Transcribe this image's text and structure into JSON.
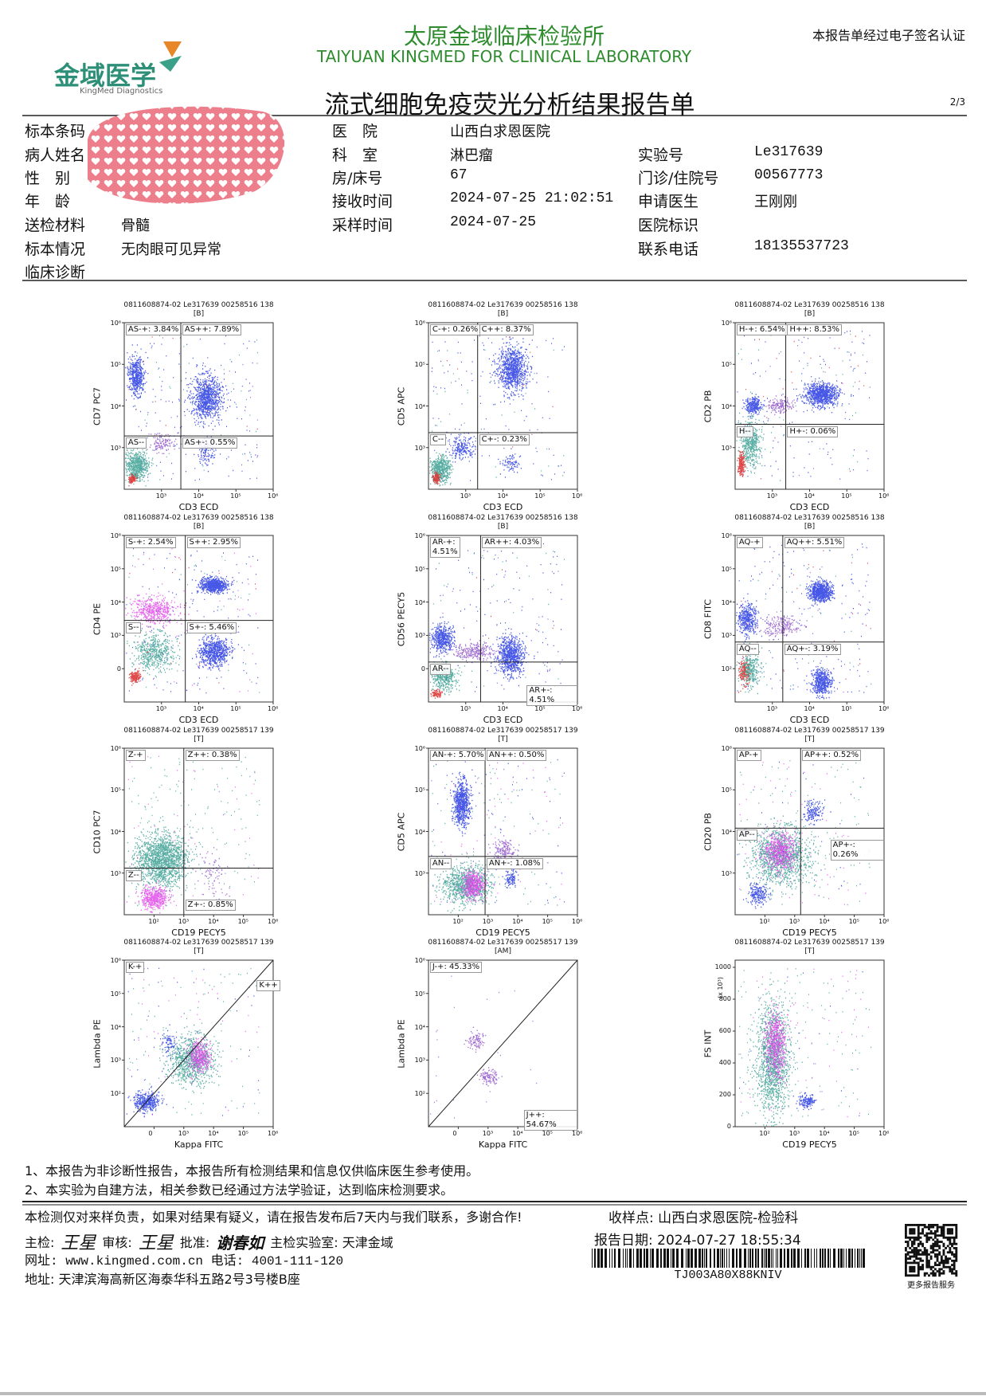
{
  "header": {
    "logo": "金域医学",
    "logo_sub": "KingMed Diagnostics",
    "title_cn": "太原金域临床检验所",
    "title_en": "TAIYUAN KINGMED FOR CLINICAL LABORATORY",
    "certification": "本报告单经过电子签名认证",
    "report_title": "流式细胞免疫荧光分析结果报告单",
    "page": "2/3"
  },
  "info": {
    "col1": [
      {
        "label": "标本条码"
      },
      {
        "label": "病人姓名"
      },
      {
        "label": "性　别"
      },
      {
        "label": "年　龄"
      },
      {
        "label": "送检材料",
        "value": "骨髓"
      },
      {
        "label": "标本情况",
        "value": "无肉眼可见异常"
      },
      {
        "label": "临床诊断"
      }
    ],
    "col2": [
      {
        "label": "医　院",
        "value": "山西白求恩医院"
      },
      {
        "label": "科　室",
        "value": "淋巴瘤"
      },
      {
        "label": "房/床号",
        "value": "67"
      },
      {
        "label": "接收时间",
        "value": "2024-07-25 21:02:51"
      },
      {
        "label": "采样时间",
        "value": "2024-07-25"
      }
    ],
    "col3": [
      {
        "label": "实验号",
        "value": "Le317639"
      },
      {
        "label": "门诊/住院号",
        "value": "00567773"
      },
      {
        "label": "申请医生",
        "value": "王刚刚"
      },
      {
        "label": "医院标识"
      },
      {
        "label": "联系电话",
        "value": "18135537723"
      }
    ]
  },
  "plots": [
    {
      "header": "0811608874-02 Le317639 00258516 138",
      "tube": "[B]",
      "x_label": "CD3 ECD",
      "y_label": "CD7 PC7",
      "xticks": [
        "10³",
        "10⁴",
        "10⁵",
        "10⁶"
      ],
      "yticks": [
        "10⁶",
        "10⁵",
        "10⁴",
        "10³"
      ],
      "gates": [
        "AS-+: 3.84%",
        "AS++: 7.89%",
        "AS--",
        "AS+-: 0.55%"
      ]
    },
    {
      "header": "0811608874-02 Le317639 00258516 138",
      "tube": "[B]",
      "x_label": "CD3 ECD",
      "y_label": "CD5 APC",
      "xticks": [
        "10³",
        "10⁴",
        "10⁵",
        "10⁶"
      ],
      "yticks": [
        "10⁶",
        "10⁵",
        "10⁴",
        "10³"
      ],
      "gates": [
        "C-+: 0.26%",
        "C++: 8.37%",
        "C--",
        "C+-: 0.23%"
      ]
    },
    {
      "header": "0811608874-02 Le317639 00258516 138",
      "tube": "[B]",
      "x_label": "CD3 ECD",
      "y_label": "CD2 PB",
      "xticks": [
        "10³",
        "10⁴",
        "10⁵",
        "10⁶"
      ],
      "yticks": [
        "10⁶",
        "10⁵",
        "10⁴",
        "10³"
      ],
      "gates": [
        "H-+: 6.54%",
        "H++: 8.53%",
        "H--",
        "H+-: 0.06%"
      ]
    },
    {
      "header": "0811608874-02 Le317639 00258516 138",
      "tube": "[B]",
      "x_label": "CD3 ECD",
      "y_label": "CD4 PE",
      "xticks": [
        "10³",
        "10⁴",
        "10⁵",
        "10⁶"
      ],
      "yticks": [
        "10⁶",
        "10⁵",
        "10⁴",
        "10³",
        "0"
      ],
      "gates": [
        "S-+: 2.54%",
        "S++: 2.95%",
        "S--",
        "S+-: 5.46%"
      ]
    },
    {
      "header": "0811608874-02 Le317639 00258516 138",
      "tube": "[B]",
      "x_label": "CD3 ECD",
      "y_label": "CD56 PECY5",
      "xticks": [
        "10³",
        "10⁴",
        "10⁵",
        "10⁶"
      ],
      "yticks": [
        "10⁶",
        "10⁵",
        "10⁴",
        "10³",
        "0"
      ],
      "gates": [
        "AR-+:\n4.51%",
        "AR++: 4.03%",
        "AR--",
        "AR+-: 4.51%"
      ]
    },
    {
      "header": "0811608874-02 Le317639 00258516 138",
      "tube": "[B]",
      "x_label": "CD3 ECD",
      "y_label": "CD8 FITC",
      "xticks": [
        "10³",
        "10⁴",
        "10⁵",
        "10⁶"
      ],
      "yticks": [
        "10⁶",
        "10⁵",
        "10⁴",
        "10³",
        "10²"
      ],
      "gates": [
        "AQ-+",
        "AQ++: 5.51%",
        "AQ--",
        "AQ+-: 3.19%"
      ]
    },
    {
      "header": "0811608874-02 Le317639 00258517 139",
      "tube": "[T]",
      "x_label": "CD19 PECY5",
      "y_label": "CD10 PC7",
      "xticks": [
        "10²",
        "10³",
        "10⁴",
        "10⁵",
        "10⁶"
      ],
      "yticks": [
        "10⁶",
        "10⁵",
        "10⁴",
        "10³"
      ],
      "gates": [
        "Z-+",
        "Z++: 0.38%",
        "Z--",
        "Z+-: 0.85%"
      ]
    },
    {
      "header": "0811608874-02 Le317639 00258517 139",
      "tube": "[T]",
      "x_label": "CD19 PECY5",
      "y_label": "CD5 APC",
      "xticks": [
        "10²",
        "10³",
        "10⁴",
        "10⁵",
        "10⁶"
      ],
      "yticks": [
        "10⁶",
        "10⁵",
        "10⁴",
        "10³"
      ],
      "gates": [
        "AN-+: 5.70%",
        "AN++: 0.50%",
        "AN--",
        "AN+-: 1.08%"
      ]
    },
    {
      "header": "0811608874-02 Le317639 00258517 139",
      "tube": "[T]",
      "x_label": "CD19 PECY5",
      "y_label": "CD20 PB",
      "xticks": [
        "10²",
        "10³",
        "10⁴",
        "10⁵",
        "10⁶"
      ],
      "yticks": [
        "10⁶",
        "10⁵",
        "10⁴",
        "10³"
      ],
      "gates": [
        "AP-+",
        "AP++: 0.52%",
        "AP--",
        "AP+-: 0.26%"
      ]
    },
    {
      "header": "0811608874-02 Le317639 00258517 139",
      "tube": "[T]",
      "x_label": "Kappa FITC",
      "y_label": "Lambda PE",
      "xticks": [
        "0",
        "10³",
        "10⁴",
        "10⁵",
        "10⁶"
      ],
      "yticks": [
        "10⁶",
        "10⁵",
        "10⁴",
        "10³",
        "10²"
      ],
      "gates": [
        "K-+",
        "K++"
      ]
    },
    {
      "header": "0811608874-02 Le317639 00258517 139",
      "tube": "[AM]",
      "x_label": "Kappa FITC",
      "y_label": "Lambda PE",
      "xticks": [
        "0",
        "10³",
        "10⁴",
        "10⁵",
        "10⁶"
      ],
      "yticks": [
        "10⁶",
        "10⁵",
        "10⁴",
        "10³",
        "10²"
      ],
      "gates": [
        "J-+: 45.33%",
        "J++: 54.67%"
      ]
    },
    {
      "header": "0811608874-02 Le317639 00258517 139",
      "tube": "[T]",
      "x_label": "CD19 PECY5",
      "y_label": "FS INT",
      "y_unit": "(x 10³)",
      "xticks": [
        "10²",
        "10³",
        "10⁴",
        "10⁵",
        "10⁶"
      ],
      "yticks": [
        0,
        200,
        400,
        600,
        800,
        1000
      ],
      "ylim": [
        0,
        1045
      ]
    }
  ],
  "notes": [
    "1、本报告为非诊断性报告，本报告所有检测结果和信息仅供临床医生参考使用。",
    "2、本实验为自建方法，相关参数已经通过方法学验证，达到临床检测要求。"
  ],
  "footer": {
    "disclaimer": "本检测仅对来样负责，如果对结果有疑义，请在报告发布后7天内与我们联系，多谢合作!",
    "collection": "收样点: 山西白求恩医院-检验科",
    "chief_label": "主检:",
    "chief": "王星",
    "review_label": "审核:",
    "review": "王星",
    "approve_label": "批准:",
    "approve": "谢春如",
    "lab": "主检实验室: 天津金域",
    "report_date": "报告日期: 2024-07-27 18:55:34",
    "website": "网址:  www.kingmed.com.cn  电话: 4001-111-120",
    "address": "地址:  天津滨海高新区海泰华科五路2号3号楼B座",
    "barcode": "TJ003A80X88KNIV",
    "qr_caption": "更多报告服务"
  }
}
